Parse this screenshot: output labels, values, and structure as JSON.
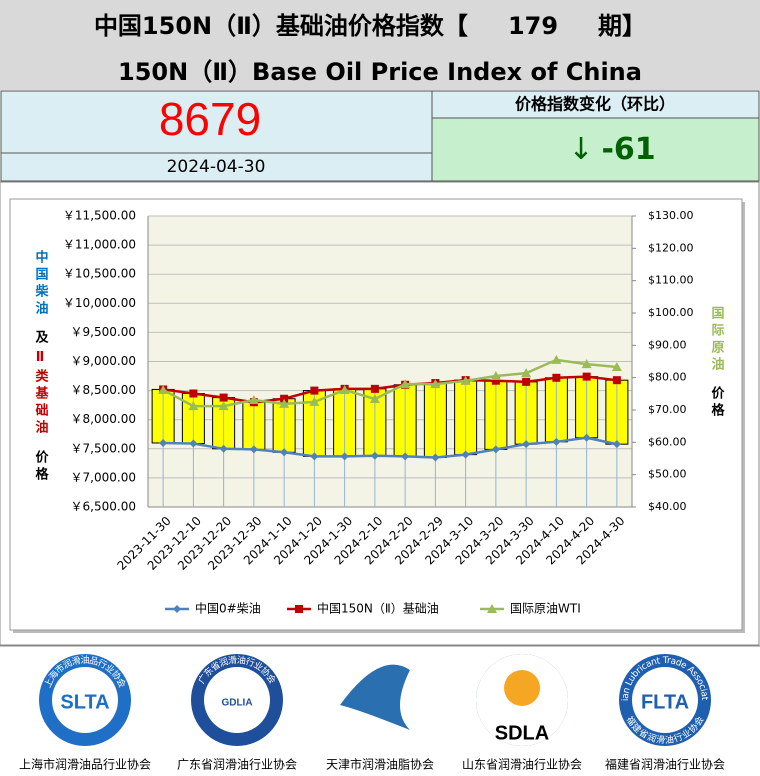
{
  "header": {
    "title_cn_prefix": "中国150N（Ⅱ）基础油价格指数【",
    "issue": 179,
    "title_cn_suffix": "期】",
    "title_en": "150N（Ⅱ）Base Oil Price Index of China"
  },
  "summary": {
    "index": 8679,
    "date": "2024-04-30",
    "change_title": "价格指数变化（环比）",
    "change_arrow": "↓",
    "change": -61
  },
  "chart_data": {
    "type": "line",
    "categories": [
      "2023-11-30",
      "2023-12-10",
      "2023-12-20",
      "2023-12-30",
      "2024-1-10",
      "2024-1-20",
      "2024-1-30",
      "2024-2-10",
      "2024-2-20",
      "2024-2-29",
      "2024-3-10",
      "2024-3-20",
      "2024-3-30",
      "2024-4-10",
      "2024-4-20",
      "2024-4-30"
    ],
    "series": [
      {
        "name": "中国0#柴油",
        "color": "#4f81bd",
        "marker": "diamond",
        "values": [
          7600,
          7590,
          7500,
          7490,
          7440,
          7370,
          7370,
          7380,
          7370,
          7350,
          7400,
          7490,
          7580,
          7620,
          7690,
          7580
        ]
      },
      {
        "name": "中国150N（Ⅱ）基础油",
        "color": "#c00000",
        "marker": "square",
        "values": [
          8520,
          8450,
          8380,
          8300,
          8360,
          8500,
          8530,
          8530,
          8600,
          8630,
          8680,
          8670,
          8650,
          8720,
          8740,
          8679
        ]
      },
      {
        "name": "国际原油WTI",
        "color": "#9bbb59",
        "marker": "triangle",
        "axis": "y2",
        "values": [
          76.2,
          71.2,
          71.2,
          73.1,
          71.9,
          72.5,
          76.2,
          73.4,
          78.0,
          78.0,
          79.0,
          80.5,
          81.4,
          85.5,
          84.2,
          83.3
        ]
      }
    ],
    "up_down_bars": {
      "color": "#ffff00"
    },
    "ylim": [
      6500,
      11500
    ],
    "yticks": [
      {
        "value": 6500,
        "label": "￥6,500.00"
      },
      {
        "value": 7000,
        "label": "￥7,000.00"
      },
      {
        "value": 7500,
        "label": "￥7,500.00"
      },
      {
        "value": 8000,
        "label": "￥8,000.00"
      },
      {
        "value": 8500,
        "label": "￥8,500.00"
      },
      {
        "value": 9000,
        "label": "￥9,000.00"
      },
      {
        "value": 9500,
        "label": "￥9,500.00"
      },
      {
        "value": 10000,
        "label": "￥10,000.00"
      },
      {
        "value": 10500,
        "label": "￥10,500.00"
      },
      {
        "value": 11000,
        "label": "￥11,000.00"
      },
      {
        "value": 11500,
        "label": "￥11,500.00"
      }
    ],
    "y2lim": [
      40,
      130
    ],
    "y2ticks": [
      {
        "value": 40,
        "label": "$40.00"
      },
      {
        "value": 50,
        "label": "$50.00"
      },
      {
        "value": 60,
        "label": "$60.00"
      },
      {
        "value": 70,
        "label": "$70.00"
      },
      {
        "value": 80,
        "label": "$80.00"
      },
      {
        "value": 90,
        "label": "$90.00"
      },
      {
        "value": 100,
        "label": "$100.00"
      },
      {
        "value": 110,
        "label": "$110.00"
      },
      {
        "value": 120,
        "label": "$120.00"
      },
      {
        "value": 130,
        "label": "$130.00"
      }
    ],
    "ylabel_parts": [
      {
        "text": "中国柴油",
        "color": "#0070c0"
      },
      {
        "text": "及",
        "color": "#000000"
      },
      {
        "text": "Ⅱ类基础油",
        "color": "#c00000"
      },
      {
        "text": "价格",
        "color": "#000000"
      }
    ],
    "y2label_parts": [
      {
        "text": "国际原油",
        "color": "#9bbb59"
      },
      {
        "text": "价格",
        "color": "#000000"
      }
    ],
    "legend": "bottom"
  },
  "logos": [
    {
      "abbr": "SLTA",
      "name": "上海市润滑油品行业协会",
      "color": "#1f6fc6"
    },
    {
      "abbr": "GDLIA",
      "name": "广东省润滑油行业协会",
      "color": "#1f4f9a"
    },
    {
      "abbr": null,
      "name": "天津市润滑油脂协会",
      "color": "#2a6fb0"
    },
    {
      "abbr": "SDLA",
      "name": "山东省润滑油行业协会",
      "color": "#1e5aa8"
    },
    {
      "abbr": "FLTA",
      "name": "福建省润滑油行业协会",
      "ring": "Fujian Lubricant Trade Association",
      "color": "#1f5fb0"
    }
  ]
}
